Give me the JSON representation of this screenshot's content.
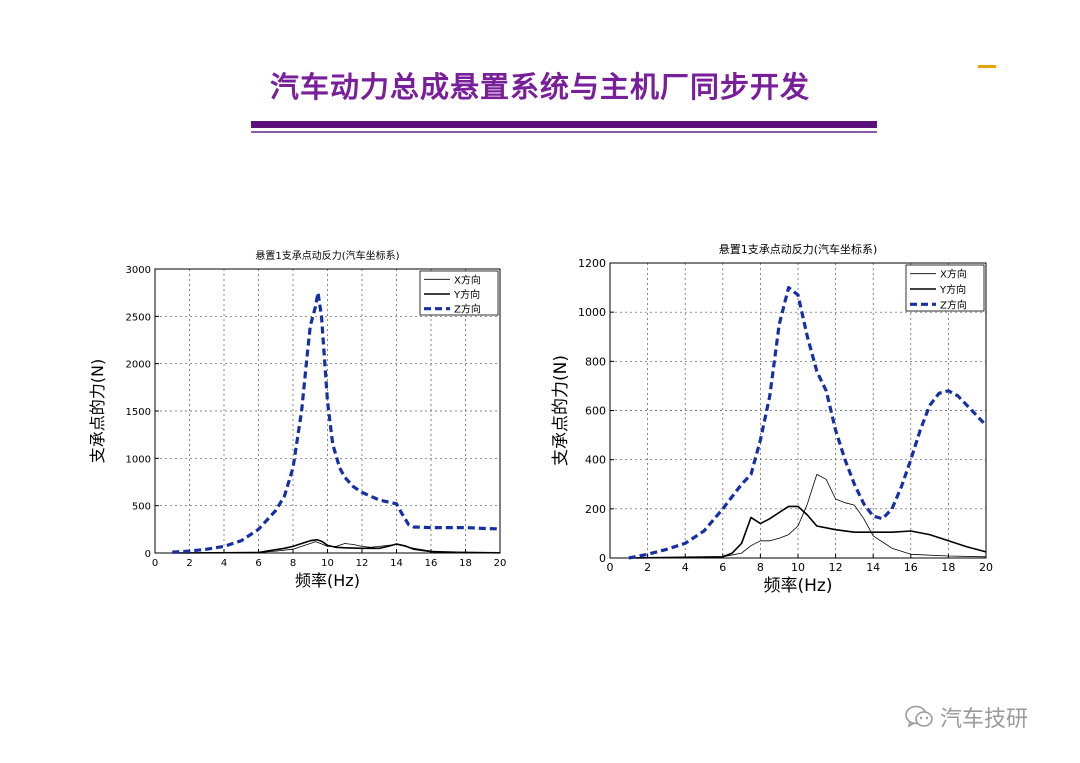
{
  "slide": {
    "title": "汽车动力总成悬置系统与主机厂同步开发",
    "watermark": "汽车技研",
    "accent_color": "#7a1f9a",
    "bar_color": "#5b0f7a"
  },
  "chart_data": [
    {
      "type": "line",
      "title": "悬置1支承点动反力(汽车坐标系)",
      "xlabel": "频率(Hz)",
      "ylabel": "支承点的力(N)",
      "xlim": [
        0,
        20
      ],
      "ylim": [
        0,
        3000
      ],
      "xticks": [
        0,
        2,
        4,
        6,
        8,
        10,
        12,
        14,
        16,
        18,
        20
      ],
      "yticks": [
        0,
        500,
        1000,
        1500,
        2000,
        2500,
        3000
      ],
      "grid": true,
      "legend": "top-right",
      "series": [
        {
          "name": "X方向",
          "color": "#000000",
          "width": 0.8,
          "dash": "",
          "points": [
            [
              1,
              0
            ],
            [
              6,
              5
            ],
            [
              7,
              20
            ],
            [
              8,
              40
            ],
            [
              8.5,
              70
            ],
            [
              9,
              100
            ],
            [
              9.3,
              120
            ],
            [
              9.6,
              100
            ],
            [
              10,
              70
            ],
            [
              10.5,
              70
            ],
            [
              11,
              100
            ],
            [
              11.5,
              90
            ],
            [
              12,
              70
            ],
            [
              12.5,
              60
            ],
            [
              13,
              70
            ],
            [
              13.5,
              80
            ],
            [
              14,
              90
            ],
            [
              14.5,
              70
            ],
            [
              15,
              50
            ],
            [
              16,
              20
            ],
            [
              17,
              10
            ],
            [
              18,
              8
            ],
            [
              20,
              5
            ]
          ]
        },
        {
          "name": "Y方向",
          "color": "#000000",
          "width": 1.6,
          "dash": "",
          "points": [
            [
              1,
              0
            ],
            [
              6,
              5
            ],
            [
              6.5,
              20
            ],
            [
              7,
              35
            ],
            [
              7.5,
              50
            ],
            [
              8,
              70
            ],
            [
              8.5,
              100
            ],
            [
              9,
              130
            ],
            [
              9.4,
              140
            ],
            [
              9.7,
              120
            ],
            [
              10,
              80
            ],
            [
              10.5,
              60
            ],
            [
              11,
              55
            ],
            [
              12,
              50
            ],
            [
              13,
              50
            ],
            [
              13.5,
              70
            ],
            [
              14,
              95
            ],
            [
              14.5,
              75
            ],
            [
              15,
              40
            ],
            [
              16,
              15
            ],
            [
              18,
              5
            ],
            [
              20,
              2
            ]
          ]
        },
        {
          "name": "Z方向",
          "color": "#1530a6",
          "width": 3.2,
          "dash": "7,4",
          "points": [
            [
              1,
              10
            ],
            [
              2,
              20
            ],
            [
              3,
              40
            ],
            [
              4,
              70
            ],
            [
              5,
              130
            ],
            [
              6,
              250
            ],
            [
              7,
              450
            ],
            [
              7.5,
              600
            ],
            [
              8,
              900
            ],
            [
              8.5,
              1500
            ],
            [
              8.8,
              2050
            ],
            [
              9,
              2400
            ],
            [
              9.3,
              2600
            ],
            [
              9.45,
              2750
            ],
            [
              9.65,
              2500
            ],
            [
              10,
              1600
            ],
            [
              10.3,
              1150
            ],
            [
              10.7,
              900
            ],
            [
              11,
              800
            ],
            [
              11.5,
              700
            ],
            [
              12,
              640
            ],
            [
              12.5,
              600
            ],
            [
              13,
              560
            ],
            [
              14,
              520
            ],
            [
              14.3,
              420
            ],
            [
              14.7,
              300
            ],
            [
              15,
              275
            ],
            [
              16,
              268
            ],
            [
              18,
              268
            ],
            [
              19,
              260
            ],
            [
              20,
              255
            ]
          ]
        }
      ]
    },
    {
      "type": "line",
      "title": "悬置1支承点动反力(汽车坐标系)",
      "xlabel": "频率(Hz)",
      "ylabel": "支承点的力(N)",
      "xlim": [
        0,
        20
      ],
      "ylim": [
        0,
        1200
      ],
      "xticks": [
        0,
        2,
        4,
        6,
        8,
        10,
        12,
        14,
        16,
        18,
        20
      ],
      "yticks": [
        0,
        200,
        400,
        600,
        800,
        1000,
        1200
      ],
      "grid": true,
      "legend": "top-right",
      "series": [
        {
          "name": "X方向",
          "color": "#000000",
          "width": 0.8,
          "dash": "",
          "points": [
            [
              1,
              0
            ],
            [
              6,
              5
            ],
            [
              7,
              20
            ],
            [
              7.5,
              50
            ],
            [
              8,
              70
            ],
            [
              8.5,
              70
            ],
            [
              9,
              80
            ],
            [
              9.5,
              95
            ],
            [
              10,
              130
            ],
            [
              10.5,
              220
            ],
            [
              11,
              340
            ],
            [
              11.5,
              320
            ],
            [
              12,
              240
            ],
            [
              12.5,
              225
            ],
            [
              13,
              215
            ],
            [
              13.5,
              160
            ],
            [
              14,
              90
            ],
            [
              15,
              40
            ],
            [
              16,
              15
            ],
            [
              18,
              8
            ],
            [
              20,
              5
            ]
          ]
        },
        {
          "name": "Y方向",
          "color": "#000000",
          "width": 1.6,
          "dash": "",
          "points": [
            [
              1,
              0
            ],
            [
              6,
              5
            ],
            [
              6.5,
              20
            ],
            [
              7,
              60
            ],
            [
              7.5,
              165
            ],
            [
              8,
              140
            ],
            [
              8.5,
              160
            ],
            [
              9,
              185
            ],
            [
              9.5,
              210
            ],
            [
              10,
              210
            ],
            [
              10.5,
              175
            ],
            [
              11,
              130
            ],
            [
              12,
              115
            ],
            [
              13,
              105
            ],
            [
              14,
              105
            ],
            [
              15,
              105
            ],
            [
              16,
              110
            ],
            [
              17,
              95
            ],
            [
              18,
              70
            ],
            [
              19,
              45
            ],
            [
              20,
              25
            ]
          ]
        },
        {
          "name": "Z方向",
          "color": "#1530a6",
          "width": 3.2,
          "dash": "7,4",
          "points": [
            [
              1,
              0
            ],
            [
              2,
              15
            ],
            [
              3,
              35
            ],
            [
              4,
              60
            ],
            [
              5,
              110
            ],
            [
              6,
              200
            ],
            [
              7,
              300
            ],
            [
              7.5,
              340
            ],
            [
              8,
              480
            ],
            [
              8.5,
              660
            ],
            [
              9,
              950
            ],
            [
              9.5,
              1100
            ],
            [
              10,
              1070
            ],
            [
              10.5,
              900
            ],
            [
              11,
              760
            ],
            [
              11.5,
              680
            ],
            [
              12,
              520
            ],
            [
              12.5,
              400
            ],
            [
              13,
              300
            ],
            [
              13.5,
              220
            ],
            [
              14,
              170
            ],
            [
              14.5,
              160
            ],
            [
              15,
              200
            ],
            [
              15.5,
              290
            ],
            [
              16,
              400
            ],
            [
              16.5,
              520
            ],
            [
              17,
              620
            ],
            [
              17.5,
              670
            ],
            [
              18,
              680
            ],
            [
              18.5,
              660
            ],
            [
              19,
              620
            ],
            [
              19.5,
              580
            ],
            [
              20,
              540
            ]
          ]
        }
      ]
    }
  ]
}
